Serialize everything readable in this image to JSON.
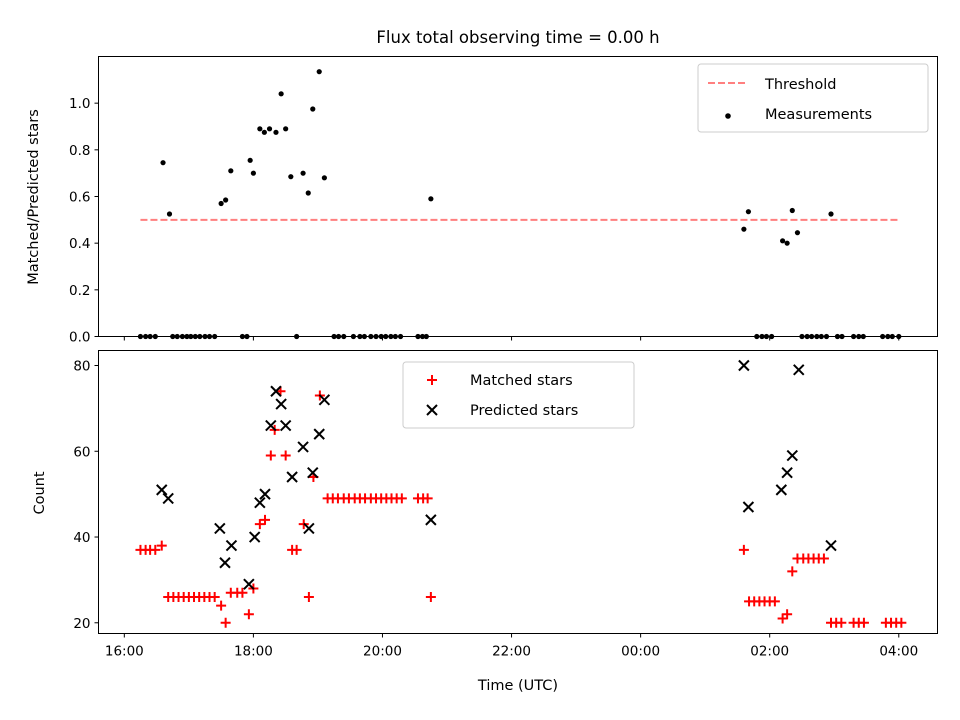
{
  "colors": {
    "threshold": "#ff7f7f",
    "measurement": "#000000",
    "matched": "#ff0000",
    "predicted": "#000000"
  },
  "chart_data": [
    {
      "type": "scatter",
      "title": "Flux total observing time = 0.00 h",
      "xlabel": "",
      "ylabel": "Matched/Predicted stars",
      "xlim": [
        15.6,
        28.6
      ],
      "ylim": [
        0.0,
        1.2
      ],
      "yticks": [
        "0.0",
        "0.2",
        "0.4",
        "0.6",
        "0.8",
        "1.0"
      ],
      "legend_position": "top-right",
      "series": [
        {
          "name": "Threshold",
          "kind": "dashed-line",
          "x": [
            16.25,
            28.0
          ],
          "y": [
            0.5,
            0.5
          ]
        },
        {
          "name": "Measurements",
          "kind": "dot",
          "points": [
            [
              16.25,
              0
            ],
            [
              16.33,
              0
            ],
            [
              16.4,
              0
            ],
            [
              16.48,
              0
            ],
            [
              16.6,
              0.745
            ],
            [
              16.7,
              0.525
            ],
            [
              16.75,
              0
            ],
            [
              16.82,
              0
            ],
            [
              16.9,
              0
            ],
            [
              16.97,
              0
            ],
            [
              17.03,
              0
            ],
            [
              17.1,
              0
            ],
            [
              17.17,
              0
            ],
            [
              17.25,
              0
            ],
            [
              17.32,
              0
            ],
            [
              17.4,
              0
            ],
            [
              17.5,
              0.57
            ],
            [
              17.57,
              0.585
            ],
            [
              17.65,
              0.71
            ],
            [
              17.83,
              0
            ],
            [
              17.9,
              0
            ],
            [
              17.95,
              0.755
            ],
            [
              18.0,
              0.7
            ],
            [
              18.1,
              0.89
            ],
            [
              18.17,
              0.875
            ],
            [
              18.25,
              0.89
            ],
            [
              18.35,
              0.875
            ],
            [
              18.43,
              1.04
            ],
            [
              18.5,
              0.89
            ],
            [
              18.58,
              0.685
            ],
            [
              18.67,
              0
            ],
            [
              18.77,
              0.7
            ],
            [
              18.85,
              0.615
            ],
            [
              18.92,
              0.975
            ],
            [
              19.02,
              1.135
            ],
            [
              19.1,
              0.68
            ],
            [
              19.25,
              0
            ],
            [
              19.32,
              0
            ],
            [
              19.4,
              0
            ],
            [
              19.55,
              0
            ],
            [
              19.65,
              0
            ],
            [
              19.72,
              0
            ],
            [
              19.82,
              0
            ],
            [
              19.9,
              0
            ],
            [
              19.98,
              0
            ],
            [
              20.05,
              0
            ],
            [
              20.13,
              0
            ],
            [
              20.2,
              0
            ],
            [
              20.28,
              0
            ],
            [
              20.55,
              0
            ],
            [
              20.62,
              0
            ],
            [
              20.68,
              0
            ],
            [
              20.75,
              0.59
            ],
            [
              25.6,
              0.46
            ],
            [
              25.67,
              0.535
            ],
            [
              25.8,
              0
            ],
            [
              25.88,
              0
            ],
            [
              25.95,
              0
            ],
            [
              26.03,
              0
            ],
            [
              26.2,
              0.41
            ],
            [
              26.27,
              0.4
            ],
            [
              26.35,
              0.54
            ],
            [
              26.43,
              0.445
            ],
            [
              26.5,
              0
            ],
            [
              26.58,
              0
            ],
            [
              26.65,
              0
            ],
            [
              26.73,
              0
            ],
            [
              26.8,
              0
            ],
            [
              26.88,
              0
            ],
            [
              26.95,
              0.525
            ],
            [
              27.05,
              0
            ],
            [
              27.12,
              0
            ],
            [
              27.3,
              0
            ],
            [
              27.38,
              0
            ],
            [
              27.45,
              0
            ],
            [
              27.75,
              0
            ],
            [
              27.83,
              0
            ],
            [
              27.9,
              0
            ],
            [
              28.0,
              0
            ]
          ]
        }
      ]
    },
    {
      "type": "scatter",
      "title": "",
      "xlabel": "Time (UTC)",
      "ylabel": "Count",
      "xlim": [
        15.6,
        28.6
      ],
      "ylim": [
        17.5,
        83.5
      ],
      "yticks": [
        "20",
        "40",
        "60",
        "80"
      ],
      "xticks": [
        {
          "pos": 16,
          "label": "16:00"
        },
        {
          "pos": 18,
          "label": "18:00"
        },
        {
          "pos": 20,
          "label": "20:00"
        },
        {
          "pos": 22,
          "label": "22:00"
        },
        {
          "pos": 24,
          "label": "00:00"
        },
        {
          "pos": 26,
          "label": "02:00"
        },
        {
          "pos": 28,
          "label": "04:00"
        }
      ],
      "legend_position": "top-center",
      "series": [
        {
          "name": "Matched stars",
          "kind": "plus",
          "points": [
            [
              16.25,
              37
            ],
            [
              16.33,
              37
            ],
            [
              16.4,
              37
            ],
            [
              16.48,
              37
            ],
            [
              16.58,
              38
            ],
            [
              16.68,
              26
            ],
            [
              16.76,
              26
            ],
            [
              16.84,
              26
            ],
            [
              16.92,
              26
            ],
            [
              17.0,
              26
            ],
            [
              17.08,
              26
            ],
            [
              17.16,
              26
            ],
            [
              17.24,
              26
            ],
            [
              17.32,
              26
            ],
            [
              17.4,
              26
            ],
            [
              17.5,
              24
            ],
            [
              17.57,
              20
            ],
            [
              17.65,
              27
            ],
            [
              17.75,
              27
            ],
            [
              17.83,
              27
            ],
            [
              17.93,
              22
            ],
            [
              18.0,
              28
            ],
            [
              18.1,
              43
            ],
            [
              18.18,
              44
            ],
            [
              18.27,
              59
            ],
            [
              18.33,
              65
            ],
            [
              18.42,
              74
            ],
            [
              18.5,
              59
            ],
            [
              18.6,
              37
            ],
            [
              18.67,
              37
            ],
            [
              18.78,
              43
            ],
            [
              18.86,
              26
            ],
            [
              18.93,
              54
            ],
            [
              19.03,
              73
            ],
            [
              19.15,
              49
            ],
            [
              19.23,
              49
            ],
            [
              19.31,
              49
            ],
            [
              19.4,
              49
            ],
            [
              19.48,
              49
            ],
            [
              19.57,
              49
            ],
            [
              19.65,
              49
            ],
            [
              19.73,
              49
            ],
            [
              19.82,
              49
            ],
            [
              19.9,
              49
            ],
            [
              19.98,
              49
            ],
            [
              20.06,
              49
            ],
            [
              20.14,
              49
            ],
            [
              20.22,
              49
            ],
            [
              20.3,
              49
            ],
            [
              20.55,
              49
            ],
            [
              20.63,
              49
            ],
            [
              20.7,
              49
            ],
            [
              20.75,
              26
            ],
            [
              25.6,
              37
            ],
            [
              25.68,
              25
            ],
            [
              25.76,
              25
            ],
            [
              25.84,
              25
            ],
            [
              25.92,
              25
            ],
            [
              26.0,
              25
            ],
            [
              26.08,
              25
            ],
            [
              26.2,
              21
            ],
            [
              26.27,
              22
            ],
            [
              26.35,
              32
            ],
            [
              26.43,
              35
            ],
            [
              26.52,
              35
            ],
            [
              26.6,
              35
            ],
            [
              26.68,
              35
            ],
            [
              26.76,
              35
            ],
            [
              26.84,
              35
            ],
            [
              26.95,
              20
            ],
            [
              27.03,
              20
            ],
            [
              27.11,
              20
            ],
            [
              27.3,
              20
            ],
            [
              27.38,
              20
            ],
            [
              27.46,
              20
            ],
            [
              27.8,
              20
            ],
            [
              27.88,
              20
            ],
            [
              27.96,
              20
            ],
            [
              28.04,
              20
            ]
          ]
        },
        {
          "name": "Predicted stars",
          "kind": "cross",
          "points": [
            [
              16.58,
              51
            ],
            [
              16.68,
              49
            ],
            [
              17.48,
              42
            ],
            [
              17.56,
              34
            ],
            [
              17.66,
              38
            ],
            [
              17.93,
              29
            ],
            [
              18.02,
              40
            ],
            [
              18.1,
              48
            ],
            [
              18.18,
              50
            ],
            [
              18.27,
              66
            ],
            [
              18.35,
              74
            ],
            [
              18.43,
              71
            ],
            [
              18.5,
              66
            ],
            [
              18.6,
              54
            ],
            [
              18.77,
              61
            ],
            [
              18.86,
              42
            ],
            [
              18.92,
              55
            ],
            [
              19.02,
              64
            ],
            [
              19.1,
              72
            ],
            [
              20.75,
              44
            ],
            [
              25.6,
              80
            ],
            [
              25.67,
              47
            ],
            [
              26.18,
              51
            ],
            [
              26.27,
              55
            ],
            [
              26.35,
              59
            ],
            [
              26.45,
              79
            ],
            [
              26.95,
              38
            ]
          ]
        }
      ]
    }
  ]
}
